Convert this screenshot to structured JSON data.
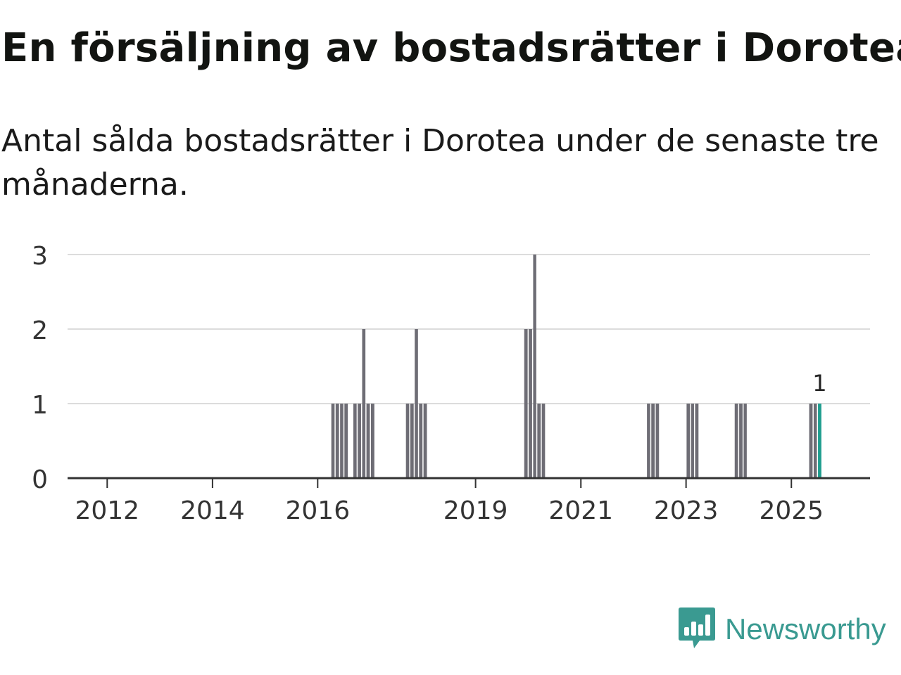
{
  "title": "En försäljning av bostadsrätter i Dorotea",
  "subtitle": "Antal sålda bostadsrätter i Dorotea under de senaste tre månaderna.",
  "brand": {
    "name": "Newsworthy",
    "icon": "newsworthy-logo-icon"
  },
  "colors": {
    "bar": "#6e6d75",
    "highlight": "#1f9e8f",
    "grid": "#dcdcdc",
    "axis": "#333333",
    "brand": "#3a9a91"
  },
  "chart_data": {
    "type": "bar",
    "title": "En försäljning av bostadsrätter i Dorotea",
    "subtitle": "Antal sålda bostadsrätter i Dorotea under de senaste tre månaderna.",
    "xlabel": "",
    "ylabel": "",
    "x_type": "date",
    "xlim": [
      "2011-04-01",
      "2026-07-01"
    ],
    "ylim": [
      0,
      3
    ],
    "yticks": [
      0,
      1,
      2,
      3
    ],
    "xticks": [
      "2012",
      "2014",
      "2016",
      "2019",
      "2021",
      "2023",
      "2025"
    ],
    "grid": true,
    "series": [
      {
        "x": [
          "2016-04",
          "2016-05",
          "2016-06",
          "2016-07",
          "2016-09",
          "2016-10",
          "2016-11",
          "2016-12",
          "2017-01",
          "2017-09",
          "2017-10",
          "2017-11",
          "2017-12",
          "2018-01",
          "2019-12",
          "2020-01",
          "2020-02",
          "2020-03",
          "2020-04",
          "2022-04",
          "2022-05",
          "2022-06",
          "2023-01",
          "2023-02",
          "2023-03",
          "2023-12",
          "2024-01",
          "2024-02",
          "2025-05",
          "2025-06",
          "2025-07"
        ],
        "values": [
          1,
          1,
          1,
          1,
          1,
          1,
          2,
          1,
          1,
          1,
          1,
          2,
          1,
          1,
          2,
          2,
          3,
          1,
          1,
          1,
          1,
          1,
          1,
          1,
          1,
          1,
          1,
          1,
          1,
          1,
          1
        ]
      }
    ],
    "highlight": {
      "x": "2025-07",
      "value": 1,
      "label": "1"
    }
  }
}
